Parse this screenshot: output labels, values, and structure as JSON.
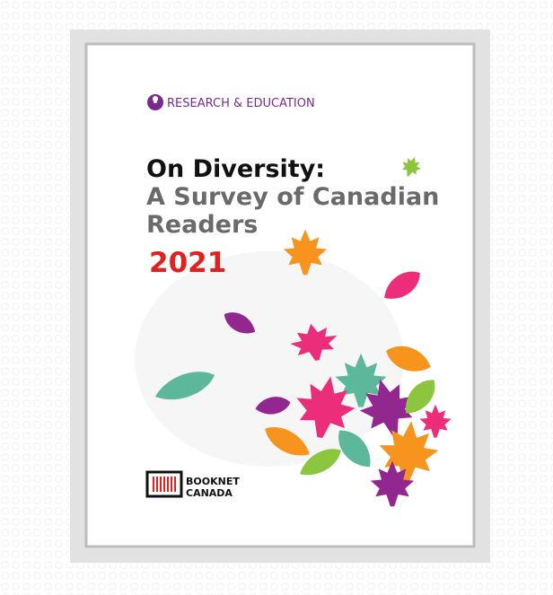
{
  "header": {
    "label": "RESEARCH & EDUCATION"
  },
  "title": {
    "line1": "On Diversity:",
    "line2": "A Survey of Canadian",
    "line3": "Readers",
    "year": "2021"
  },
  "publisher": {
    "line1": "BOOKNET",
    "line2": "CANADA"
  }
}
